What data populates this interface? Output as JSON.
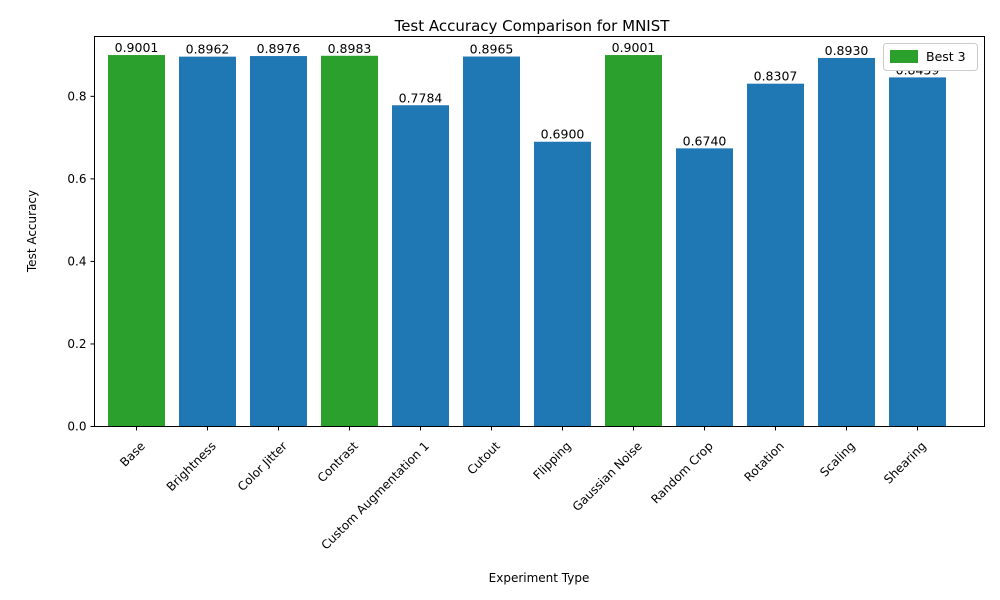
{
  "chart_data": {
    "type": "bar",
    "title": "Test Accuracy Comparison for MNIST",
    "xlabel": "Experiment Type",
    "ylabel": "Test Accuracy",
    "ylim": [
      0,
      0.945
    ],
    "yticks": [
      0.0,
      0.2,
      0.4,
      0.6,
      0.8
    ],
    "ytick_labels": [
      "0.0",
      "0.2",
      "0.4",
      "0.6",
      "0.8"
    ],
    "categories": [
      "Base",
      "Brightness",
      "Color Jitter",
      "Contrast",
      "Custom Augmentation 1",
      "Cutout",
      "Flipping",
      "Gaussian Noise",
      "Random Crop",
      "Rotation",
      "Scaling",
      "Shearing"
    ],
    "values": [
      0.9001,
      0.8962,
      0.8976,
      0.8983,
      0.7784,
      0.8965,
      0.69,
      0.9001,
      0.674,
      0.8307,
      0.893,
      0.8459
    ],
    "value_labels": [
      "0.9001",
      "0.8962",
      "0.8976",
      "0.8983",
      "0.7784",
      "0.8965",
      "0.6900",
      "0.9001",
      "0.6740",
      "0.8307",
      "0.8930",
      "0.8459"
    ],
    "best_flags": [
      true,
      false,
      false,
      true,
      false,
      false,
      false,
      true,
      false,
      false,
      false,
      false
    ],
    "colors": {
      "default": "#1f77b4",
      "best": "#2ca02c"
    },
    "legend": {
      "label": "Best 3",
      "position": "top-right"
    },
    "grid": false
  }
}
